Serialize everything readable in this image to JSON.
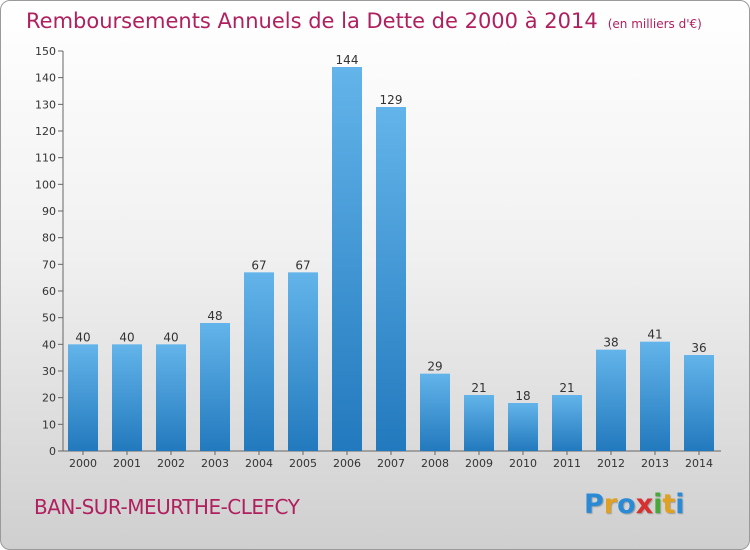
{
  "title": "Remboursements Annuels de la Dette de 2000 à 2014",
  "unit": "(en milliers d'€)",
  "commune": "BAN-SUR-MEURTHE-CLEFCY",
  "logo": {
    "letters": [
      "P",
      "r",
      "o",
      "x",
      "i",
      "t",
      "i"
    ],
    "colors": [
      "#2a8ad6",
      "#e0a020",
      "#2a8ad6",
      "#d83030",
      "#4aa83a",
      "#e0a020",
      "#2a8ad6"
    ]
  },
  "colors": {
    "bar_light": "#63b4ea",
    "bar_dark": "#2279bd",
    "title": "#b0205f"
  },
  "chart_data": {
    "type": "bar",
    "categories": [
      "2000",
      "2001",
      "2002",
      "2003",
      "2004",
      "2005",
      "2006",
      "2007",
      "2008",
      "2009",
      "2010",
      "2011",
      "2012",
      "2013",
      "2014"
    ],
    "values": [
      40,
      40,
      40,
      48,
      67,
      67,
      144,
      129,
      29,
      21,
      18,
      21,
      38,
      41,
      36
    ],
    "ylim": [
      0,
      150
    ],
    "yticks": [
      0,
      10,
      20,
      30,
      40,
      50,
      60,
      70,
      80,
      90,
      100,
      110,
      120,
      130,
      140,
      150
    ],
    "grid": false,
    "data_labels": true
  }
}
